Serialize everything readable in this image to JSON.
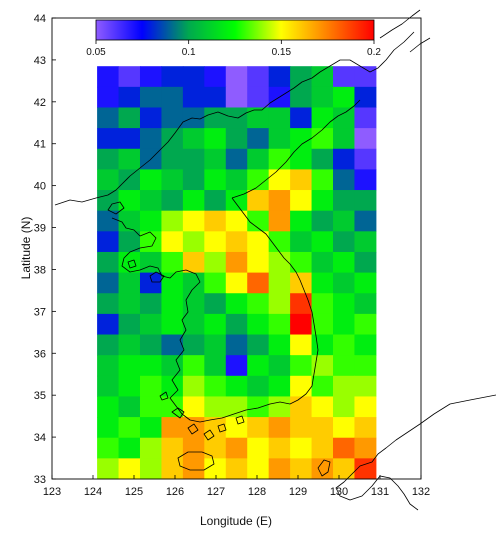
{
  "chart_data": {
    "type": "heatmap",
    "xlabel": "Longitude (E)",
    "ylabel": "Latitude (N)",
    "xlim": [
      123,
      132
    ],
    "ylim": [
      33,
      44
    ],
    "x_ticks": [
      "123",
      "124",
      "125",
      "126",
      "127",
      "128",
      "129",
      "130",
      "131",
      "132"
    ],
    "y_ticks": [
      "33",
      "34",
      "35",
      "36",
      "37",
      "38",
      "39",
      "40",
      "41",
      "42",
      "43",
      "44"
    ],
    "colorbar": {
      "min": 0.05,
      "max": 0.2,
      "ticks": [
        "0.05",
        "0.1",
        "0.15",
        "0.2"
      ],
      "colors": [
        "#8f5cff",
        "#0000ff",
        "#00a84f",
        "#00ff00",
        "#ffff00",
        "#ff8000",
        "#ff0000"
      ]
    },
    "grid": {
      "lon_min": 124.1,
      "lon_max": 130.9,
      "lat_min": 33.0,
      "lat_max": 42.85,
      "cols": 13,
      "rows": 20,
      "values": [
        [
          0.07,
          0.06,
          0.07,
          0.08,
          0.08,
          0.07,
          0.05,
          0.06,
          0.08,
          0.1,
          0.11,
          0.06,
          0.06
        ],
        [
          0.07,
          0.08,
          0.09,
          0.09,
          0.08,
          0.08,
          0.05,
          0.06,
          0.07,
          0.1,
          0.11,
          0.12,
          0.08
        ],
        [
          0.09,
          0.1,
          0.08,
          0.09,
          0.09,
          0.1,
          0.1,
          0.11,
          0.11,
          0.08,
          0.12,
          0.11,
          0.06
        ],
        [
          0.08,
          0.08,
          0.09,
          0.1,
          0.11,
          0.12,
          0.1,
          0.09,
          0.11,
          0.12,
          0.13,
          0.11,
          0.05
        ],
        [
          0.1,
          0.11,
          0.09,
          0.1,
          0.1,
          0.11,
          0.09,
          0.11,
          0.13,
          0.12,
          0.1,
          0.08,
          0.06
        ],
        [
          0.11,
          0.1,
          0.12,
          0.11,
          0.1,
          0.12,
          0.11,
          0.13,
          0.15,
          0.16,
          0.13,
          0.09,
          0.07
        ],
        [
          0.1,
          0.12,
          0.11,
          0.1,
          0.12,
          0.1,
          0.12,
          0.16,
          0.17,
          0.15,
          0.12,
          0.1,
          0.1
        ],
        [
          0.09,
          0.11,
          0.12,
          0.14,
          0.15,
          0.16,
          0.15,
          0.13,
          0.17,
          0.12,
          0.1,
          0.11,
          0.09
        ],
        [
          0.08,
          0.1,
          0.13,
          0.15,
          0.14,
          0.15,
          0.16,
          0.15,
          0.13,
          0.11,
          0.12,
          0.1,
          0.11
        ],
        [
          0.1,
          0.12,
          0.11,
          0.13,
          0.16,
          0.14,
          0.17,
          0.15,
          0.14,
          0.13,
          0.11,
          0.12,
          0.1
        ],
        [
          0.09,
          0.11,
          0.08,
          0.12,
          0.11,
          0.13,
          0.15,
          0.18,
          0.14,
          0.16,
          0.12,
          0.11,
          0.12
        ],
        [
          0.1,
          0.11,
          0.1,
          0.12,
          0.11,
          0.1,
          0.12,
          0.13,
          0.14,
          0.19,
          0.13,
          0.12,
          0.11
        ],
        [
          0.08,
          0.1,
          0.11,
          0.12,
          0.11,
          0.12,
          0.1,
          0.12,
          0.13,
          0.2,
          0.13,
          0.12,
          0.13
        ],
        [
          0.1,
          0.11,
          0.1,
          0.09,
          0.1,
          0.11,
          0.09,
          0.1,
          0.12,
          0.15,
          0.12,
          0.13,
          0.12
        ],
        [
          0.11,
          0.12,
          0.12,
          0.11,
          0.13,
          0.11,
          0.07,
          0.12,
          0.11,
          0.13,
          0.14,
          0.13,
          0.13
        ],
        [
          0.11,
          0.12,
          0.13,
          0.12,
          0.14,
          0.13,
          0.12,
          0.11,
          0.12,
          0.15,
          0.13,
          0.14,
          0.14
        ],
        [
          0.12,
          0.11,
          0.13,
          0.13,
          0.15,
          0.14,
          0.14,
          0.13,
          0.14,
          0.16,
          0.15,
          0.14,
          0.15
        ],
        [
          0.12,
          0.13,
          0.12,
          0.17,
          0.17,
          0.16,
          0.15,
          0.16,
          0.17,
          0.16,
          0.16,
          0.15,
          0.16
        ],
        [
          0.13,
          0.12,
          0.14,
          0.16,
          0.17,
          0.16,
          0.17,
          0.15,
          0.16,
          0.15,
          0.16,
          0.18,
          0.17
        ],
        [
          0.14,
          0.15,
          0.14,
          0.16,
          0.17,
          0.15,
          0.16,
          0.15,
          0.17,
          0.16,
          0.17,
          0.16,
          0.19
        ]
      ]
    }
  }
}
